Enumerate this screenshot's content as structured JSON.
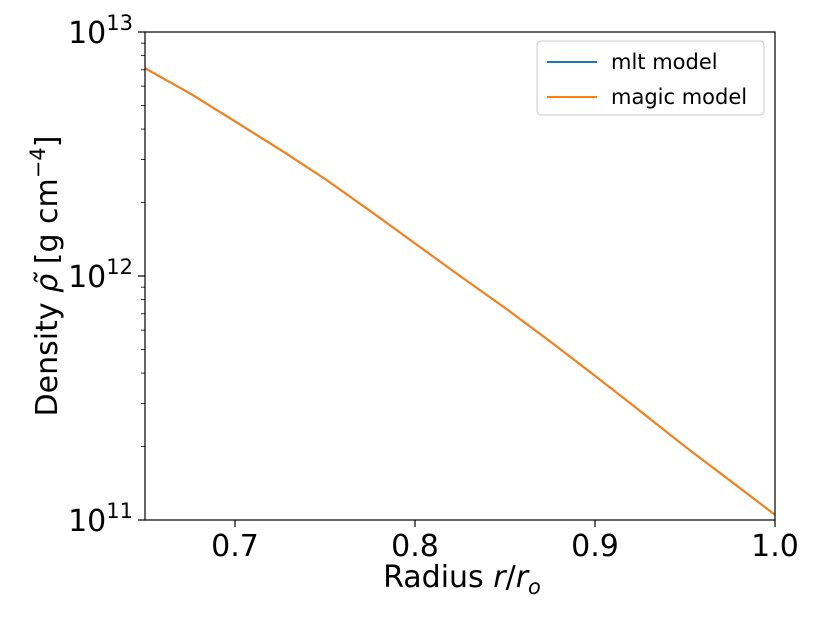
{
  "chart_data": {
    "type": "line",
    "title": "",
    "xlabel": "Radius r/r_o",
    "ylabel": "Density ρ̃ [g cm^-4]",
    "xlim": [
      0.65,
      1.0
    ],
    "ylim": [
      100000000000.0,
      10000000000000.0
    ],
    "yscale": "log",
    "grid": false,
    "legend_position": "top-right",
    "x_ticks": [
      "0.7",
      "0.8",
      "0.9",
      "1.0"
    ],
    "x_tick_values": [
      0.7,
      0.8,
      0.9,
      1.0
    ],
    "y_ticks": [
      {
        "value": 100000000000.0,
        "base": "10",
        "exp": "11"
      },
      {
        "value": 1000000000000.0,
        "base": "10",
        "exp": "12"
      },
      {
        "value": 10000000000000.0,
        "base": "10",
        "exp": "13"
      }
    ],
    "series": [
      {
        "name": "mlt model",
        "color": "#1f77b4",
        "x": [
          0.65,
          0.675,
          0.7,
          0.725,
          0.75,
          0.775,
          0.8,
          0.825,
          0.85,
          0.875,
          0.9,
          0.925,
          0.95,
          0.975,
          1.0
        ],
        "y": [
          7100000000000.0,
          5600000000000.0,
          4300000000000.0,
          3300000000000.0,
          2500000000000.0,
          1850000000000.0,
          1360000000000.0,
          1000000000000.0,
          740000000000.0,
          540000000000.0,
          390000000000.0,
          280000000000.0,
          200000000000.0,
          145000000000.0,
          105000000000.0
        ]
      },
      {
        "name": "magic model",
        "color": "#ff7f0e",
        "x": [
          0.65,
          0.675,
          0.7,
          0.725,
          0.75,
          0.775,
          0.8,
          0.825,
          0.85,
          0.875,
          0.9,
          0.925,
          0.95,
          0.975,
          1.0
        ],
        "y": [
          7100000000000.0,
          5600000000000.0,
          4300000000000.0,
          3300000000000.0,
          2500000000000.0,
          1850000000000.0,
          1360000000000.0,
          1000000000000.0,
          740000000000.0,
          540000000000.0,
          390000000000.0,
          280000000000.0,
          200000000000.0,
          145000000000.0,
          105000000000.0
        ]
      }
    ]
  }
}
